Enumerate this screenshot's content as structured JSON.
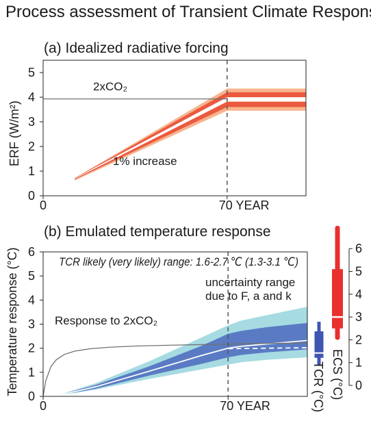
{
  "figure": {
    "title": "Process assessment of Transient Climate Response"
  },
  "colors": {
    "forcing_outer": "#f8b48e",
    "forcing_inner": "#ea5a3f",
    "temp_very_likely": "#a6dbe2",
    "temp_likely": "#5a7bc4",
    "ecs_bar": "#e8302f",
    "tcr_bar": "#3f56b0",
    "emulated_line": "#ffffff",
    "co2_response_line": "#707070",
    "reference_line": "#555555"
  },
  "chart_data": [
    {
      "id": "a",
      "type": "area",
      "title": "(a) Idealized radiative forcing",
      "ylabel": "ERF (W/m²)",
      "xlabel": "",
      "xlim": [
        0,
        100
      ],
      "ylim": [
        0,
        5.5
      ],
      "yticks": [
        0,
        1,
        2,
        3,
        4,
        5
      ],
      "xticks": [
        {
          "value": 0,
          "label": "0"
        },
        {
          "value": 70,
          "label": "70 YEAR"
        }
      ],
      "vline": 70,
      "reference_line": {
        "value": 3.93,
        "label": "2xCO₂",
        "x_start": 0,
        "x_end": 70
      },
      "x_start": 12,
      "ramp_label": "1% increase",
      "bands": [
        {
          "kind": "outer",
          "low_start": 0.62,
          "high_start": 0.72,
          "low_plateau": 3.45,
          "high_plateau": 4.35
        },
        {
          "kind": "inner",
          "low_start": 0.66,
          "high_start": 0.72,
          "low_plateau": 3.6,
          "high_plateau": 4.2
        }
      ],
      "gap": {
        "low_start": 0.69,
        "high_start": 0.71,
        "low_plateau": 3.82,
        "high_plateau": 4.0
      }
    },
    {
      "id": "b",
      "type": "area",
      "title": "(b) Emulated temperature response",
      "ylabel": "Temperature response (°C)",
      "xlabel": "",
      "xlim": [
        0,
        100
      ],
      "ylim": [
        0,
        6
      ],
      "yticks": [
        0,
        1,
        2,
        3,
        4,
        5,
        6
      ],
      "xticks": [
        {
          "value": 0,
          "label": "0"
        },
        {
          "value": 70,
          "label": "70 YEAR"
        }
      ],
      "vline": 70,
      "annotation_tcr": "TCR likely (very likely) range: 1.6-2.7 ℃ (1.3-3.1 ℃)",
      "annotation_uncertainty": [
        "uncertainty range",
        "due to F, a and k"
      ],
      "co2_label": "Response to 2xCO₂",
      "co2_response": {
        "x": [
          0,
          1,
          3,
          5,
          8,
          12,
          18,
          25,
          35,
          50,
          70,
          85,
          100
        ],
        "y": [
          0.0,
          0.65,
          1.25,
          1.52,
          1.74,
          1.88,
          1.98,
          2.04,
          2.09,
          2.13,
          2.17,
          2.2,
          2.22
        ]
      },
      "emulated_bands": {
        "x": [
          7,
          20,
          40,
          60,
          70,
          75,
          85,
          100
        ],
        "very_likely_low": [
          0.05,
          0.28,
          0.72,
          1.12,
          1.32,
          1.42,
          1.52,
          1.62
        ],
        "very_likely_high": [
          0.1,
          0.55,
          1.45,
          2.45,
          2.95,
          3.15,
          3.38,
          3.72
        ],
        "likely_low": [
          0.06,
          0.32,
          0.86,
          1.35,
          1.62,
          1.72,
          1.83,
          1.95
        ],
        "likely_high": [
          0.09,
          0.48,
          1.24,
          2.1,
          2.6,
          2.72,
          2.88,
          3.05
        ],
        "central": [
          0.07,
          0.4,
          1.04,
          1.7,
          2.0,
          2.08,
          2.18,
          2.32
        ]
      },
      "dashed_central": {
        "x": [
          70,
          100
        ],
        "y": [
          1.98,
          2.02
        ]
      },
      "tcr_bar": {
        "label": "TCR (°C)",
        "likely": [
          1.6,
          2.7
        ],
        "very_likely": [
          1.3,
          3.1
        ],
        "central": 1.8
      },
      "ecs_bar": {
        "label": "ECS (°C)",
        "likely": [
          2.5,
          5.1
        ],
        "very_likely": [
          2.0,
          7.0
        ],
        "central": 3.0,
        "yticks": [
          0,
          1,
          2,
          3,
          4,
          5,
          6
        ]
      }
    }
  ]
}
